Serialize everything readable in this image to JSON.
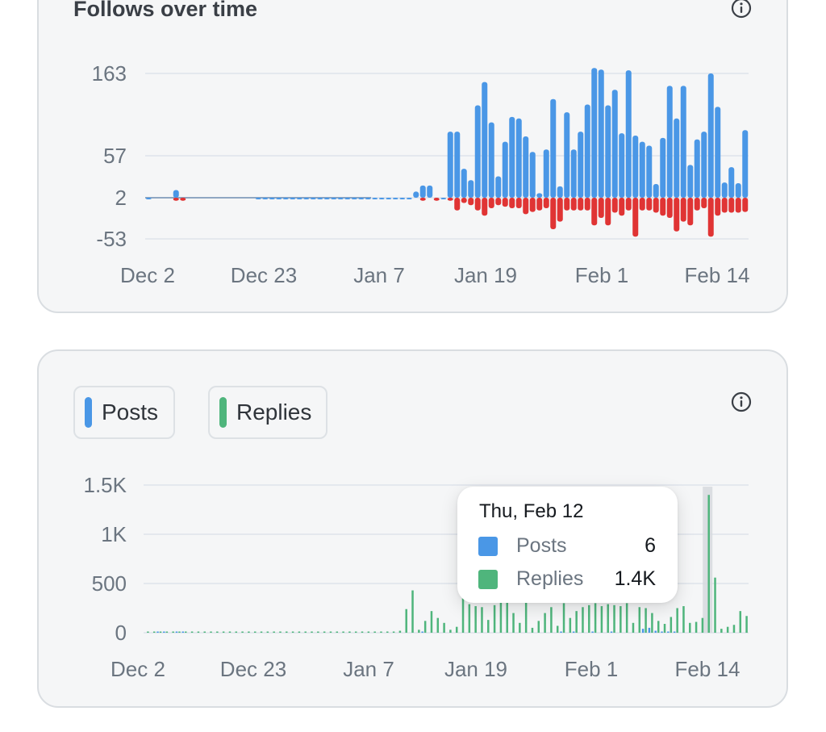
{
  "colors": {
    "posts": "#4a97e6",
    "replies": "#4fb57c",
    "follows_positive": "#4a97e6",
    "follows_negative": "#e03434",
    "grid": "#e4e8ee",
    "axis_text": "#6b7580"
  },
  "follows_card": {
    "title": "Follows over time",
    "info_icon": "info-circle-icon"
  },
  "activity_card": {
    "legend": [
      {
        "label": "Posts",
        "color": "#4a97e6"
      },
      {
        "label": "Replies",
        "color": "#4fb57c"
      }
    ],
    "info_icon": "info-circle-icon",
    "tooltip": {
      "date": "Thu, Feb 12",
      "rows": [
        {
          "label": "Posts",
          "value": "6"
        },
        {
          "label": "Replies",
          "value": "1.4K"
        }
      ]
    }
  },
  "chart_data": [
    {
      "type": "bar",
      "title": "Follows over time",
      "x_tick_labels": [
        "Dec 2",
        "Dec 23",
        "Jan 7",
        "Jan 19",
        "Feb 1",
        "Feb 14"
      ],
      "y_tick_labels": [
        "163",
        "57",
        "2",
        "-53"
      ],
      "ylim": [
        -53,
        163
      ],
      "grid": true,
      "series": [
        {
          "color": "#4a97e6",
          "points": [
            [
              0,
              2
            ],
            [
              4,
              12
            ],
            [
              16,
              2
            ],
            [
              17,
              2
            ],
            [
              18,
              2
            ],
            [
              19,
              2
            ],
            [
              20,
              2
            ],
            [
              21,
              2
            ],
            [
              22,
              2
            ],
            [
              23,
              2
            ],
            [
              24,
              2
            ],
            [
              25,
              2
            ],
            [
              26,
              2
            ],
            [
              27,
              2
            ],
            [
              28,
              2
            ],
            [
              29,
              2
            ],
            [
              30,
              2
            ],
            [
              31,
              2
            ],
            [
              32,
              2
            ],
            [
              33,
              2
            ],
            [
              34,
              2
            ],
            [
              35,
              2
            ],
            [
              36,
              2
            ],
            [
              37,
              2
            ],
            [
              38,
              2
            ],
            [
              39,
              10
            ],
            [
              40,
              18
            ],
            [
              41,
              18
            ],
            [
              43,
              2
            ],
            [
              44,
              88
            ],
            [
              45,
              88
            ],
            [
              46,
              40
            ],
            [
              47,
              25
            ],
            [
              48,
              122
            ],
            [
              49,
              152
            ],
            [
              50,
              100
            ],
            [
              51,
              30
            ],
            [
              52,
              75
            ],
            [
              53,
              107
            ],
            [
              54,
              105
            ],
            [
              55,
              82
            ],
            [
              56,
              62
            ],
            [
              57,
              8
            ],
            [
              58,
              65
            ],
            [
              59,
              130
            ],
            [
              60,
              17
            ],
            [
              61,
              113
            ],
            [
              62,
              65
            ],
            [
              63,
              88
            ],
            [
              64,
              123
            ],
            [
              65,
              170
            ],
            [
              66,
              168
            ],
            [
              67,
              122
            ],
            [
              68,
              142
            ],
            [
              69,
              86
            ],
            [
              70,
              167
            ],
            [
              71,
              83
            ],
            [
              72,
              75
            ],
            [
              73,
              70
            ],
            [
              74,
              20
            ],
            [
              75,
              80
            ],
            [
              76,
              147
            ],
            [
              77,
              105
            ],
            [
              78,
              147
            ],
            [
              79,
              45
            ],
            [
              80,
              78
            ],
            [
              81,
              88
            ],
            [
              82,
              163
            ],
            [
              83,
              120
            ],
            [
              84,
              22
            ],
            [
              85,
              42
            ],
            [
              86,
              21
            ],
            [
              87,
              90
            ]
          ]
        },
        {
          "color": "#e03434",
          "points": [
            [
              4,
              -2
            ],
            [
              5,
              -2
            ],
            [
              40,
              -2
            ],
            [
              42,
              -2
            ],
            [
              44,
              -2
            ],
            [
              45,
              -15
            ],
            [
              46,
              -5
            ],
            [
              47,
              -8
            ],
            [
              48,
              -15
            ],
            [
              49,
              -22
            ],
            [
              50,
              -12
            ],
            [
              51,
              -8
            ],
            [
              52,
              -10
            ],
            [
              53,
              -12
            ],
            [
              54,
              -12
            ],
            [
              55,
              -20
            ],
            [
              56,
              -17
            ],
            [
              57,
              -15
            ],
            [
              58,
              -12
            ],
            [
              59,
              -40
            ],
            [
              60,
              -30
            ],
            [
              61,
              -15
            ],
            [
              62,
              -15
            ],
            [
              63,
              -15
            ],
            [
              64,
              -15
            ],
            [
              65,
              -35
            ],
            [
              66,
              -25
            ],
            [
              67,
              -35
            ],
            [
              68,
              -18
            ],
            [
              69,
              -22
            ],
            [
              70,
              -15
            ],
            [
              71,
              -50
            ],
            [
              72,
              -15
            ],
            [
              73,
              -15
            ],
            [
              74,
              -18
            ],
            [
              75,
              -22
            ],
            [
              76,
              -25
            ],
            [
              77,
              -43
            ],
            [
              78,
              -30
            ],
            [
              79,
              -35
            ],
            [
              80,
              -15
            ],
            [
              81,
              -12
            ],
            [
              82,
              -50
            ],
            [
              83,
              -22
            ],
            [
              84,
              -18
            ],
            [
              85,
              -18
            ],
            [
              86,
              -18
            ],
            [
              87,
              -17
            ]
          ]
        }
      ]
    },
    {
      "type": "bar",
      "x_tick_labels": [
        "Dec 2",
        "Dec 23",
        "Jan 7",
        "Jan 19",
        "Feb 1",
        "Feb 14"
      ],
      "y_tick_labels": [
        "1.5K",
        "1K",
        "500",
        "0"
      ],
      "ylim": [
        0,
        1500
      ],
      "grid": true,
      "highlight": {
        "date": "Thu, Feb 12",
        "posts": 6,
        "replies": 1400
      },
      "series": [
        {
          "name": "Posts",
          "color": "#4a97e6",
          "points": [
            [
              2,
              10
            ],
            [
              3,
              10
            ],
            [
              5,
              8
            ],
            [
              6,
              8
            ],
            [
              44,
              10
            ],
            [
              66,
              10
            ],
            [
              68,
              10
            ],
            [
              71,
              10
            ],
            [
              74,
              10
            ],
            [
              79,
              40
            ],
            [
              80,
              50
            ],
            [
              81,
              20
            ],
            [
              82,
              10
            ],
            [
              83,
              10
            ],
            [
              84,
              6
            ]
          ]
        },
        {
          "name": "Replies",
          "color": "#4fb57c",
          "points": [
            [
              0,
              5
            ],
            [
              1,
              5
            ],
            [
              2,
              5
            ],
            [
              3,
              5
            ],
            [
              4,
              5
            ],
            [
              5,
              5
            ],
            [
              6,
              5
            ],
            [
              7,
              5
            ],
            [
              8,
              5
            ],
            [
              9,
              5
            ],
            [
              10,
              5
            ],
            [
              11,
              5
            ],
            [
              12,
              5
            ],
            [
              13,
              5
            ],
            [
              14,
              5
            ],
            [
              15,
              5
            ],
            [
              16,
              5
            ],
            [
              17,
              5
            ],
            [
              18,
              5
            ],
            [
              19,
              5
            ],
            [
              20,
              5
            ],
            [
              21,
              5
            ],
            [
              22,
              5
            ],
            [
              23,
              5
            ],
            [
              24,
              5
            ],
            [
              25,
              5
            ],
            [
              26,
              5
            ],
            [
              27,
              5
            ],
            [
              28,
              5
            ],
            [
              29,
              5
            ],
            [
              30,
              5
            ],
            [
              31,
              5
            ],
            [
              32,
              5
            ],
            [
              33,
              5
            ],
            [
              34,
              5
            ],
            [
              35,
              5
            ],
            [
              36,
              5
            ],
            [
              37,
              5
            ],
            [
              38,
              5
            ],
            [
              39,
              5
            ],
            [
              40,
              20
            ],
            [
              41,
              240
            ],
            [
              42,
              430
            ],
            [
              43,
              30
            ],
            [
              44,
              120
            ],
            [
              45,
              220
            ],
            [
              46,
              150
            ],
            [
              47,
              100
            ],
            [
              48,
              30
            ],
            [
              49,
              60
            ],
            [
              50,
              420
            ],
            [
              51,
              290
            ],
            [
              52,
              270
            ],
            [
              53,
              260
            ],
            [
              54,
              130
            ],
            [
              55,
              280
            ],
            [
              56,
              330
            ],
            [
              57,
              320
            ],
            [
              58,
              200
            ],
            [
              59,
              100
            ],
            [
              60,
              310
            ],
            [
              61,
              50
            ],
            [
              62,
              120
            ],
            [
              63,
              200
            ],
            [
              64,
              260
            ],
            [
              65,
              70
            ],
            [
              66,
              300
            ],
            [
              67,
              150
            ],
            [
              68,
              220
            ],
            [
              69,
              260
            ],
            [
              70,
              280
            ],
            [
              71,
              300
            ],
            [
              72,
              270
            ],
            [
              73,
              290
            ],
            [
              74,
              280
            ],
            [
              75,
              270
            ],
            [
              76,
              300
            ],
            [
              77,
              100
            ],
            [
              78,
              260
            ],
            [
              79,
              250
            ],
            [
              80,
              200
            ],
            [
              81,
              120
            ],
            [
              82,
              90
            ],
            [
              83,
              160
            ],
            [
              84,
              250
            ],
            [
              85,
              270
            ],
            [
              86,
              100
            ],
            [
              87,
              110
            ],
            [
              88,
              150
            ],
            [
              89,
              1400
            ],
            [
              90,
              560
            ],
            [
              91,
              40
            ],
            [
              92,
              60
            ],
            [
              93,
              80
            ],
            [
              94,
              220
            ],
            [
              95,
              170
            ]
          ]
        }
      ]
    }
  ]
}
